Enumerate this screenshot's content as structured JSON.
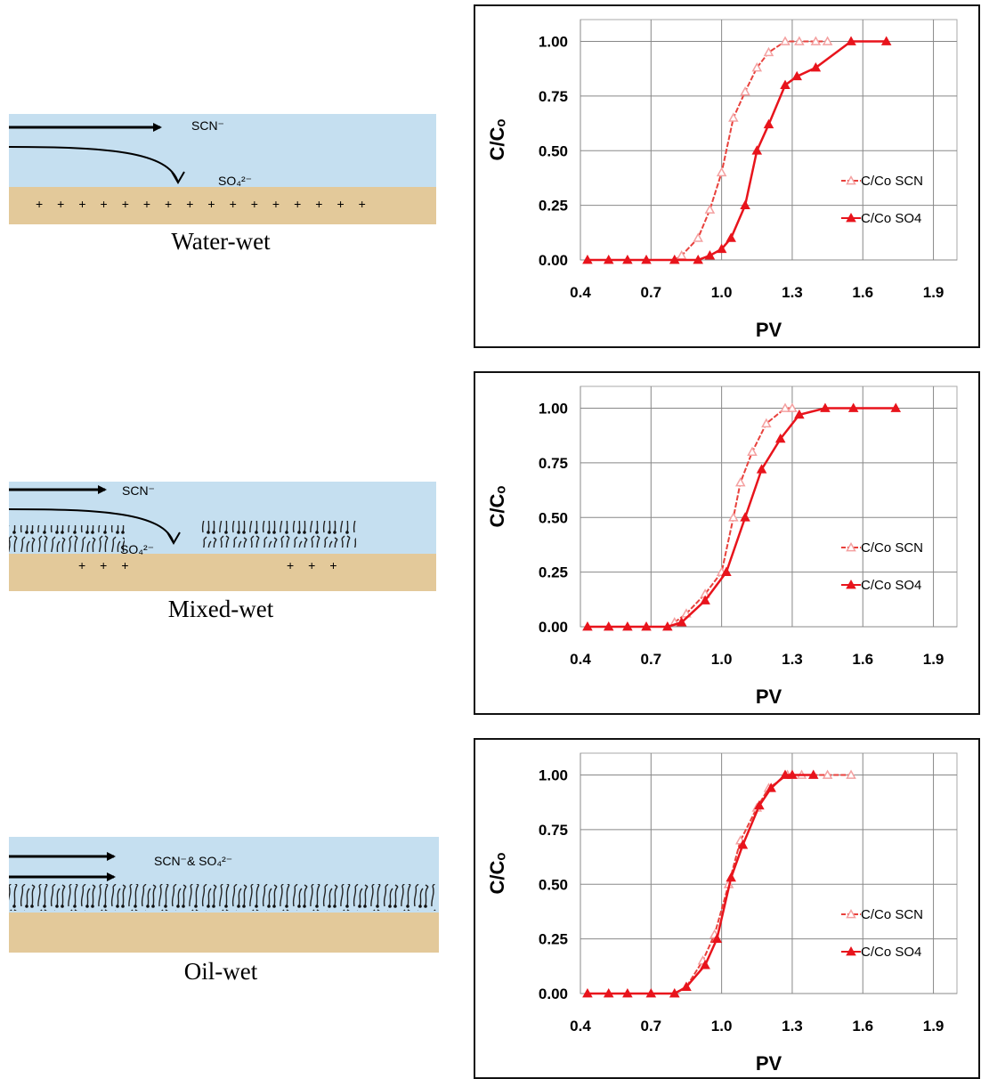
{
  "chart_data": [
    {
      "type": "line",
      "x_label": "PV",
      "y_label": "C/Cₒ",
      "xlim": [
        0.4,
        2.0
      ],
      "ylim": [
        0,
        1.1
      ],
      "xticks": [
        {
          "value": 0.4,
          "label": "0.4"
        },
        {
          "value": 0.7,
          "label": "0.7"
        },
        {
          "value": 1.0,
          "label": "1.0"
        },
        {
          "value": 1.3,
          "label": "1.3"
        },
        {
          "value": 1.6,
          "label": "1.6"
        },
        {
          "value": 1.9,
          "label": "1.9"
        }
      ],
      "yticks": [
        {
          "value": 0,
          "label": "0.00"
        },
        {
          "value": 0.25,
          "label": "0.25"
        },
        {
          "value": 0.5,
          "label": "0.50"
        },
        {
          "value": 0.75,
          "label": "0.75"
        },
        {
          "value": 1.0,
          "label": "1.00"
        }
      ],
      "grid": true,
      "legend": "center right",
      "series": [
        {
          "name": "C/Co SCN",
          "color": "#e8413c",
          "marker": "open-triangle",
          "x": [
            0.8,
            0.83,
            0.9,
            0.95,
            1.0,
            1.05,
            1.1,
            1.15,
            1.2,
            1.27,
            1.33,
            1.4,
            1.45
          ],
          "values": [
            0,
            0.02,
            0.1,
            0.23,
            0.4,
            0.65,
            0.77,
            0.88,
            0.95,
            1.0,
            1.0,
            1.0,
            1.0
          ]
        },
        {
          "name": "C/Co SO4",
          "color": "#e8141c",
          "marker": "triangle",
          "x": [
            0.43,
            0.52,
            0.6,
            0.68,
            0.8,
            0.9,
            0.95,
            1.0,
            1.04,
            1.1,
            1.15,
            1.2,
            1.27,
            1.32,
            1.4,
            1.55,
            1.7
          ],
          "values": [
            0,
            0,
            0,
            0,
            0,
            0,
            0.02,
            0.05,
            0.1,
            0.25,
            0.5,
            0.62,
            0.8,
            0.84,
            0.88,
            1.0,
            1.0
          ]
        }
      ]
    },
    {
      "type": "line",
      "x_label": "PV",
      "y_label": "C/Cₒ",
      "xlim": [
        0.4,
        2.0
      ],
      "ylim": [
        0,
        1.1
      ],
      "xticks": [
        {
          "value": 0.4,
          "label": "0.4"
        },
        {
          "value": 0.7,
          "label": "0.7"
        },
        {
          "value": 1.0,
          "label": "1.0"
        },
        {
          "value": 1.3,
          "label": "1.3"
        },
        {
          "value": 1.6,
          "label": "1.6"
        },
        {
          "value": 1.9,
          "label": "1.9"
        }
      ],
      "yticks": [
        {
          "value": 0,
          "label": "0.00"
        },
        {
          "value": 0.25,
          "label": "0.25"
        },
        {
          "value": 0.5,
          "label": "0.50"
        },
        {
          "value": 0.75,
          "label": "0.75"
        },
        {
          "value": 1.0,
          "label": "1.00"
        }
      ],
      "grid": true,
      "legend": "center right",
      "series": [
        {
          "name": "C/Co SCN",
          "color": "#e8413c",
          "marker": "open-triangle",
          "x": [
            0.8,
            0.85,
            0.93,
            1.0,
            1.05,
            1.08,
            1.13,
            1.19,
            1.27,
            1.3
          ],
          "values": [
            0.02,
            0.06,
            0.15,
            0.25,
            0.5,
            0.66,
            0.8,
            0.93,
            1.0,
            1.0
          ]
        },
        {
          "name": "C/Co SO4",
          "color": "#e8141c",
          "marker": "triangle",
          "x": [
            0.43,
            0.52,
            0.6,
            0.68,
            0.77,
            0.83,
            0.93,
            1.02,
            1.1,
            1.17,
            1.25,
            1.33,
            1.44,
            1.56,
            1.74
          ],
          "values": [
            0,
            0,
            0,
            0,
            0,
            0.02,
            0.12,
            0.25,
            0.5,
            0.72,
            0.86,
            0.97,
            1.0,
            1.0,
            1.0
          ]
        }
      ]
    },
    {
      "type": "line",
      "x_label": "PV",
      "y_label": "C/Cₒ",
      "xlim": [
        0.4,
        2.0
      ],
      "ylim": [
        0,
        1.1
      ],
      "xticks": [
        {
          "value": 0.4,
          "label": "0.4"
        },
        {
          "value": 0.7,
          "label": "0.7"
        },
        {
          "value": 1.0,
          "label": "1.0"
        },
        {
          "value": 1.3,
          "label": "1.3"
        },
        {
          "value": 1.6,
          "label": "1.6"
        },
        {
          "value": 1.9,
          "label": "1.9"
        }
      ],
      "yticks": [
        {
          "value": 0,
          "label": "0.00"
        },
        {
          "value": 0.25,
          "label": "0.25"
        },
        {
          "value": 0.5,
          "label": "0.50"
        },
        {
          "value": 0.75,
          "label": "0.75"
        },
        {
          "value": 1.0,
          "label": "1.00"
        }
      ],
      "grid": true,
      "legend": "center right",
      "series": [
        {
          "name": "C/Co SCN",
          "color": "#e8413c",
          "marker": "open-triangle",
          "x": [
            0.8,
            0.85,
            0.92,
            0.97,
            1.03,
            1.08,
            1.15,
            1.2,
            1.28,
            1.34,
            1.45,
            1.55
          ],
          "values": [
            0,
            0.03,
            0.15,
            0.27,
            0.5,
            0.7,
            0.85,
            0.94,
            1.0,
            1.0,
            1.0,
            1.0
          ]
        },
        {
          "name": "C/Co SO4",
          "color": "#e8141c",
          "marker": "triangle",
          "x": [
            0.43,
            0.52,
            0.6,
            0.7,
            0.8,
            0.85,
            0.93,
            0.98,
            1.04,
            1.09,
            1.16,
            1.21,
            1.27,
            1.3,
            1.39
          ],
          "values": [
            0,
            0,
            0,
            0,
            0,
            0.03,
            0.13,
            0.25,
            0.53,
            0.68,
            0.86,
            0.94,
            1.0,
            1.0,
            1.0
          ]
        }
      ]
    }
  ],
  "diagrams": [
    {
      "labels": [
        "SCN⁻",
        "SO₄²⁻"
      ],
      "caption": "Water-wet"
    },
    {
      "labels": [
        "SCN⁻",
        "SO₄²⁻"
      ],
      "caption": "Mixed-wet"
    },
    {
      "labels": [
        "SCN⁻& SO₄²⁻"
      ],
      "caption": "Oil-wet"
    }
  ]
}
